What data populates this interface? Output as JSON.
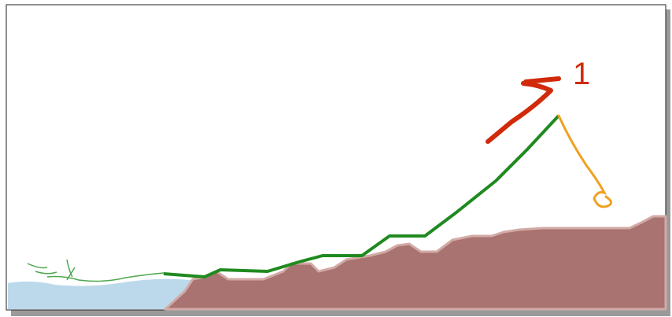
{
  "annotation": {
    "label": "1"
  }
}
